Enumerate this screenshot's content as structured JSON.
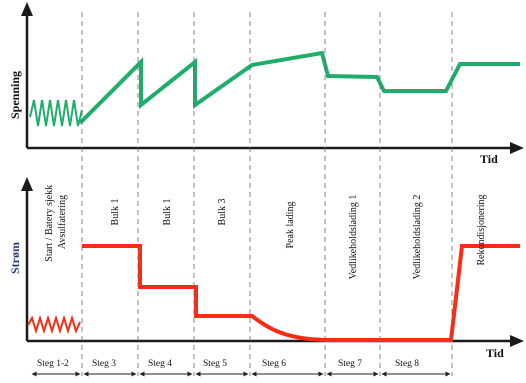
{
  "top_chart": {
    "y_label": "Spenning",
    "x_label": "Tid",
    "line_color": "#1fae6a"
  },
  "bottom_chart": {
    "y_label": "Strøm",
    "y_label_color": "#2b3a7a",
    "x_label": "Tid",
    "line_color": "#ff2a14"
  },
  "phase_labels": [
    "Start / Batery sjekk\nAvsulfatering",
    "Bulk 1",
    "Bulk 1",
    "Bulk 3",
    "Peak lading",
    "Vedlikeholdslading 1",
    "Vedlikeholdslading 2",
    "Rekondisjonering"
  ],
  "step_labels": [
    "Steg 1-2",
    "Steg 3",
    "Steg 4",
    "Steg 5",
    "Steg 6",
    "Steg 7",
    "Steg 8"
  ]
}
